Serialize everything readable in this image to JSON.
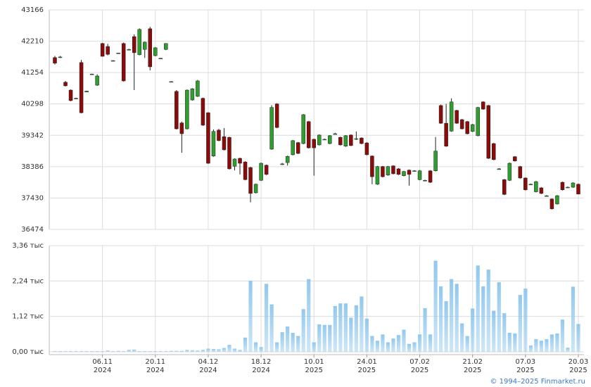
{
  "chart_data": {
    "type": "candlestick",
    "categories": [
      null,
      null,
      null,
      null,
      null,
      null,
      null,
      null,
      null,
      "06.11 2024",
      null,
      null,
      null,
      null,
      null,
      null,
      null,
      null,
      null,
      "20.11 2024",
      null,
      null,
      null,
      null,
      null,
      null,
      null,
      null,
      null,
      "04.12 2024",
      null,
      null,
      null,
      null,
      null,
      null,
      null,
      null,
      null,
      "18.12 2024",
      null,
      null,
      null,
      null,
      null,
      null,
      null,
      null,
      null,
      "10.01 2025",
      null,
      null,
      null,
      null,
      null,
      null,
      null,
      null,
      null,
      "24.01 2025",
      null,
      null,
      null,
      null,
      null,
      null,
      null,
      null,
      null,
      "07.02 2025",
      null,
      null,
      null,
      null,
      null,
      null,
      null,
      null,
      null,
      "21.02 2025",
      null,
      null,
      null,
      null,
      null,
      null,
      null,
      null,
      null,
      "07.03 2025",
      null,
      null,
      null,
      null,
      null,
      null,
      null,
      null,
      null,
      "20.03 2025"
    ],
    "open": [
      41710,
      41720,
      40960,
      40720,
      40460,
      41560,
      40660,
      41210,
      40870,
      42140,
      42050,
      41620,
      41840,
      42140,
      41960,
      42350,
      41800,
      41960,
      42590,
      41770,
      41690,
      41960,
      40980,
      40680,
      39720,
      39540,
      40420,
      40530,
      40470,
      40030,
      38710,
      39500,
      39300,
      39280,
      38400,
      38640,
      38530,
      38360,
      37590,
      37970,
      38430,
      38920,
      40300,
      38460,
      38510,
      38750,
      39120,
      39090,
      39760,
      39220,
      39050,
      39210,
      39090,
      39380,
      39280,
      39010,
      39350,
      39230,
      39260,
      39110,
      38710,
      37850,
      38390,
      38130,
      38410,
      38320,
      38110,
      38280,
      38250,
      37990,
      37960,
      38260,
      38260,
      40250,
      39710,
      39470,
      40100,
      39820,
      39760,
      39460,
      39330,
      40360,
      40250,
      39090,
      38310,
      37990,
      37970,
      38690,
      38390,
      38040,
      37840,
      37620,
      37740,
      37490,
      37400,
      37250,
      37910,
      37750,
      37760,
      37850
    ],
    "high": [
      41760,
      41760,
      41000,
      40740,
      40490,
      41640,
      40700,
      41220,
      41200,
      42160,
      42130,
      41630,
      41860,
      42170,
      41980,
      42420,
      42600,
      42200,
      42650,
      42030,
      41700,
      42150,
      40990,
      40720,
      39760,
      40740,
      40780,
      41030,
      40490,
      40050,
      39520,
      39540,
      39560,
      39300,
      38640,
      38660,
      38550,
      38380,
      37870,
      38510,
      38450,
      40260,
      40320,
      38500,
      38720,
      39200,
      39140,
      39990,
      39780,
      39240,
      39370,
      39240,
      39350,
      39420,
      39300,
      39350,
      39370,
      39460,
      39280,
      39130,
      38730,
      38410,
      38410,
      38410,
      38430,
      38340,
      38260,
      38300,
      38280,
      38280,
      37990,
      38280,
      39290,
      40280,
      40300,
      40470,
      40120,
      39840,
      39780,
      39690,
      40210,
      40380,
      40270,
      39110,
      38340,
      38010,
      38510,
      38710,
      38410,
      38060,
      37870,
      37950,
      37760,
      37520,
      37420,
      37520,
      37930,
      37780,
      37910,
      37870
    ],
    "low": [
      41500,
      41700,
      40830,
      40380,
      40450,
      40010,
      40660,
      41200,
      40850,
      41740,
      41780,
      41600,
      41830,
      40980,
      41940,
      40720,
      41780,
      41700,
      41320,
      41750,
      41670,
      41940,
      40960,
      39520,
      38810,
      39520,
      40400,
      40510,
      39630,
      38470,
      38690,
      39160,
      38880,
      38300,
      38270,
      38150,
      37970,
      37300,
      37570,
      37950,
      38130,
      38900,
      39560,
      38440,
      38420,
      38730,
      38770,
      39070,
      38940,
      38110,
      39030,
      39200,
      39070,
      39370,
      39030,
      38990,
      39010,
      39200,
      39070,
      38730,
      37850,
      37830,
      38060,
      38110,
      38150,
      38130,
      38090,
      37810,
      38240,
      37970,
      37940,
      37890,
      38240,
      39690,
      38990,
      39450,
      39690,
      39520,
      39370,
      39440,
      39310,
      40120,
      38620,
      38580,
      38300,
      37520,
      37950,
      38540,
      38020,
      37660,
      37830,
      37600,
      37550,
      37480,
      37080,
      37230,
      37660,
      37740,
      37740,
      37540
    ],
    "close": [
      41540,
      41730,
      40850,
      40400,
      40470,
      40030,
      40690,
      41210,
      41150,
      41750,
      41810,
      41620,
      41850,
      41000,
      41960,
      41860,
      42570,
      42180,
      41430,
      42010,
      41690,
      42140,
      40980,
      39540,
      39390,
      40720,
      40760,
      41000,
      39650,
      38490,
      39460,
      39180,
      38900,
      38320,
      38620,
      38490,
      37990,
      37570,
      37850,
      38490,
      38150,
      40190,
      39580,
      38470,
      38700,
      39180,
      38790,
      39970,
      38960,
      38960,
      39350,
      39220,
      39330,
      39390,
      39050,
      39330,
      39030,
      39240,
      39090,
      38750,
      38080,
      38390,
      38080,
      38390,
      38170,
      38150,
      38240,
      38150,
      38260,
      38260,
      37970,
      37910,
      38860,
      39710,
      39010,
      40360,
      39710,
      39540,
      39390,
      39670,
      40190,
      40140,
      38640,
      38600,
      38320,
      37540,
      38490,
      38560,
      38040,
      37680,
      37850,
      37930,
      37570,
      37500,
      37100,
      37500,
      37680,
      37760,
      37890,
      37550
    ],
    "volume": [
      0.02,
      0.02,
      0.02,
      0.02,
      0.02,
      0.02,
      0.02,
      0.02,
      0.02,
      0.02,
      0.04,
      0.02,
      0.03,
      0.02,
      0.06,
      0.07,
      0.02,
      0.02,
      0.02,
      0.02,
      0.02,
      0.02,
      0.03,
      0.03,
      0.03,
      0.06,
      0.05,
      0.04,
      0.06,
      0.1,
      0.09,
      0.08,
      0.12,
      0.22,
      0.1,
      0.06,
      0.45,
      2.25,
      0.3,
      0.15,
      2.15,
      1.5,
      0.3,
      0.62,
      0.8,
      0.6,
      0.5,
      1.35,
      2.3,
      0.3,
      0.87,
      0.85,
      0.85,
      1.45,
      1.53,
      1.53,
      1.08,
      1.47,
      1.75,
      1.05,
      0.5,
      0.35,
      0.55,
      0.3,
      0.42,
      0.53,
      0.7,
      0.25,
      0.3,
      0.55,
      1.38,
      0.55,
      2.88,
      2.07,
      1.6,
      2.3,
      2.15,
      0.9,
      0.5,
      1.37,
      2.73,
      2.07,
      2.6,
      1.3,
      2.2,
      1.22,
      0.6,
      0.58,
      1.8,
      2.0,
      0.2,
      0.4,
      0.35,
      0.4,
      0.55,
      0.58,
      1.02,
      0.13,
      2.06,
      0.88
    ],
    "ylim": [
      36474,
      43166
    ],
    "yticks": [
      36474,
      37430,
      38386,
      39342,
      40298,
      41254,
      42210,
      43166
    ],
    "volume_ylim": [
      0,
      3.36
    ],
    "volume_yticks": [
      {
        "value": 0,
        "label": "0,00 тыс"
      },
      {
        "value": 1.12,
        "label": "1,12 тыс"
      },
      {
        "value": 2.24,
        "label": "2,24 тыс"
      },
      {
        "value": 3.36,
        "label": "3,36 тыс"
      }
    ],
    "up_color": "#2f9e2f",
    "down_color": "#8b0a0a",
    "volume_color": "#92c8ee",
    "grid": true,
    "credit": "© 1994–2025 Finmarket.ru"
  }
}
